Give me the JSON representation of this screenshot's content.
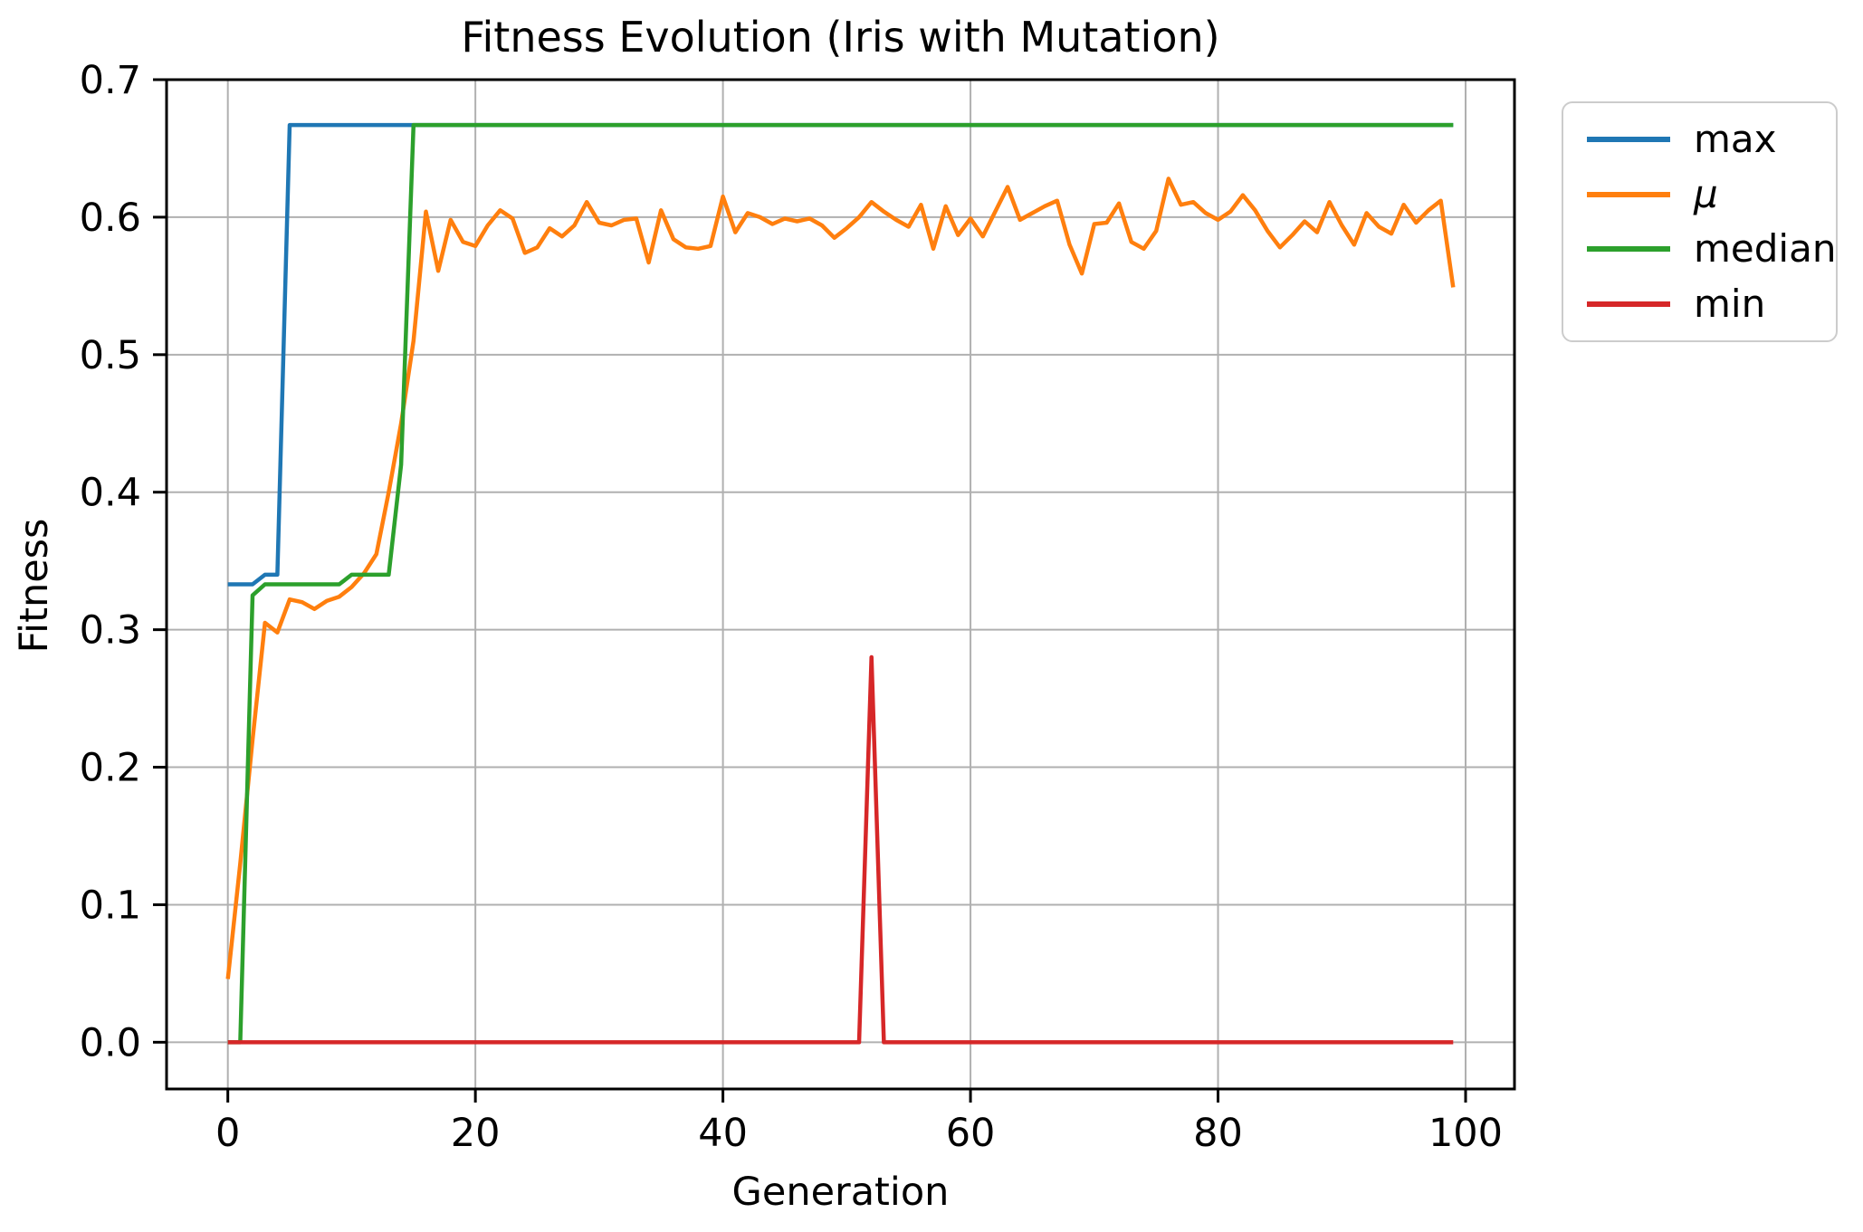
{
  "title": "Fitness Evolution (Iris with Mutation)",
  "axes": {
    "xlabel": "Generation",
    "ylabel": "Fitness"
  },
  "legend": {
    "items": [
      {
        "label": "max",
        "color": "#1f77b4",
        "italic": false
      },
      {
        "label": "μ",
        "color": "#ff7f0e",
        "italic": true
      },
      {
        "label": "median",
        "color": "#2ca02c",
        "italic": false
      },
      {
        "label": "min",
        "color": "#d62728",
        "italic": false
      }
    ]
  },
  "colors": {
    "grid": "#b0b0b0",
    "frame": "#000000",
    "background": "#ffffff",
    "legend_border": "#cccccc"
  },
  "chart_data": {
    "type": "line",
    "title": "Fitness Evolution (Iris with Mutation)",
    "xlabel": "Generation",
    "ylabel": "Fitness",
    "xlim": [
      -4.95,
      103.95
    ],
    "ylim": [
      -0.034,
      0.7
    ],
    "xticks": [
      0,
      20,
      40,
      60,
      80,
      100
    ],
    "yticks": [
      0.0,
      0.1,
      0.2,
      0.3,
      0.4,
      0.5,
      0.6,
      0.7
    ],
    "grid": true,
    "legend_position": "outside upper right",
    "x_start": 0,
    "x_step": 1,
    "n_points": 100,
    "series": [
      {
        "key": "max",
        "name": "max",
        "color": "#1f77b4",
        "values": [
          0.333,
          0.333,
          0.333,
          0.34,
          0.34,
          0.667,
          0.667,
          0.667,
          0.667,
          0.667,
          0.667,
          0.667,
          0.667,
          0.667,
          0.667,
          0.667,
          0.667,
          0.667,
          0.667,
          0.667,
          0.667,
          0.667,
          0.667,
          0.667,
          0.667,
          0.667,
          0.667,
          0.667,
          0.667,
          0.667,
          0.667,
          0.667,
          0.667,
          0.667,
          0.667,
          0.667,
          0.667,
          0.667,
          0.667,
          0.667,
          0.667,
          0.667,
          0.667,
          0.667,
          0.667,
          0.667,
          0.667,
          0.667,
          0.667,
          0.667,
          0.667,
          0.667,
          0.667,
          0.667,
          0.667,
          0.667,
          0.667,
          0.667,
          0.667,
          0.667,
          0.667,
          0.667,
          0.667,
          0.667,
          0.667,
          0.667,
          0.667,
          0.667,
          0.667,
          0.667,
          0.667,
          0.667,
          0.667,
          0.667,
          0.667,
          0.667,
          0.667,
          0.667,
          0.667,
          0.667,
          0.667,
          0.667,
          0.667,
          0.667,
          0.667,
          0.667,
          0.667,
          0.667,
          0.667,
          0.667,
          0.667,
          0.667,
          0.667,
          0.667,
          0.667,
          0.667,
          0.667,
          0.667,
          0.667,
          0.667
        ]
      },
      {
        "key": "mu",
        "name": "μ",
        "color": "#ff7f0e",
        "values": [
          0.046,
          0.13,
          0.22,
          0.305,
          0.298,
          0.322,
          0.32,
          0.315,
          0.321,
          0.324,
          0.331,
          0.341,
          0.355,
          0.4,
          0.45,
          0.51,
          0.604,
          0.561,
          0.598,
          0.582,
          0.579,
          0.594,
          0.605,
          0.599,
          0.574,
          0.578,
          0.592,
          0.586,
          0.594,
          0.611,
          0.596,
          0.594,
          0.598,
          0.599,
          0.567,
          0.605,
          0.584,
          0.578,
          0.577,
          0.579,
          0.615,
          0.589,
          0.603,
          0.6,
          0.595,
          0.599,
          0.597,
          0.599,
          0.594,
          0.585,
          0.592,
          0.6,
          0.611,
          0.604,
          0.598,
          0.593,
          0.609,
          0.577,
          0.608,
          0.587,
          0.599,
          0.586,
          0.604,
          0.622,
          0.598,
          0.603,
          0.608,
          0.612,
          0.58,
          0.559,
          0.595,
          0.596,
          0.61,
          0.582,
          0.577,
          0.59,
          0.628,
          0.609,
          0.611,
          0.603,
          0.598,
          0.604,
          0.616,
          0.605,
          0.59,
          0.578,
          0.587,
          0.597,
          0.589,
          0.611,
          0.594,
          0.58,
          0.603,
          0.593,
          0.588,
          0.609,
          0.596,
          0.605,
          0.612,
          0.549
        ]
      },
      {
        "key": "median",
        "name": "median",
        "color": "#2ca02c",
        "values": [
          0.0,
          0.0,
          0.325,
          0.333,
          0.333,
          0.333,
          0.333,
          0.333,
          0.333,
          0.333,
          0.34,
          0.34,
          0.34,
          0.34,
          0.42,
          0.667,
          0.667,
          0.667,
          0.667,
          0.667,
          0.667,
          0.667,
          0.667,
          0.667,
          0.667,
          0.667,
          0.667,
          0.667,
          0.667,
          0.667,
          0.667,
          0.667,
          0.667,
          0.667,
          0.667,
          0.667,
          0.667,
          0.667,
          0.667,
          0.667,
          0.667,
          0.667,
          0.667,
          0.667,
          0.667,
          0.667,
          0.667,
          0.667,
          0.667,
          0.667,
          0.667,
          0.667,
          0.667,
          0.667,
          0.667,
          0.667,
          0.667,
          0.667,
          0.667,
          0.667,
          0.667,
          0.667,
          0.667,
          0.667,
          0.667,
          0.667,
          0.667,
          0.667,
          0.667,
          0.667,
          0.667,
          0.667,
          0.667,
          0.667,
          0.667,
          0.667,
          0.667,
          0.667,
          0.667,
          0.667,
          0.667,
          0.667,
          0.667,
          0.667,
          0.667,
          0.667,
          0.667,
          0.667,
          0.667,
          0.667,
          0.667,
          0.667,
          0.667,
          0.667,
          0.667,
          0.667,
          0.667,
          0.667,
          0.667,
          0.667
        ]
      },
      {
        "key": "min",
        "name": "min",
        "color": "#d62728",
        "values": [
          0.0,
          0.0,
          0.0,
          0.0,
          0.0,
          0.0,
          0.0,
          0.0,
          0.0,
          0.0,
          0.0,
          0.0,
          0.0,
          0.0,
          0.0,
          0.0,
          0.0,
          0.0,
          0.0,
          0.0,
          0.0,
          0.0,
          0.0,
          0.0,
          0.0,
          0.0,
          0.0,
          0.0,
          0.0,
          0.0,
          0.0,
          0.0,
          0.0,
          0.0,
          0.0,
          0.0,
          0.0,
          0.0,
          0.0,
          0.0,
          0.0,
          0.0,
          0.0,
          0.0,
          0.0,
          0.0,
          0.0,
          0.0,
          0.0,
          0.0,
          0.0,
          0.0,
          0.28,
          0.0,
          0.0,
          0.0,
          0.0,
          0.0,
          0.0,
          0.0,
          0.0,
          0.0,
          0.0,
          0.0,
          0.0,
          0.0,
          0.0,
          0.0,
          0.0,
          0.0,
          0.0,
          0.0,
          0.0,
          0.0,
          0.0,
          0.0,
          0.0,
          0.0,
          0.0,
          0.0,
          0.0,
          0.0,
          0.0,
          0.0,
          0.0,
          0.0,
          0.0,
          0.0,
          0.0,
          0.0,
          0.0,
          0.0,
          0.0,
          0.0,
          0.0,
          0.0,
          0.0,
          0.0,
          0.0,
          0.0
        ]
      }
    ]
  }
}
